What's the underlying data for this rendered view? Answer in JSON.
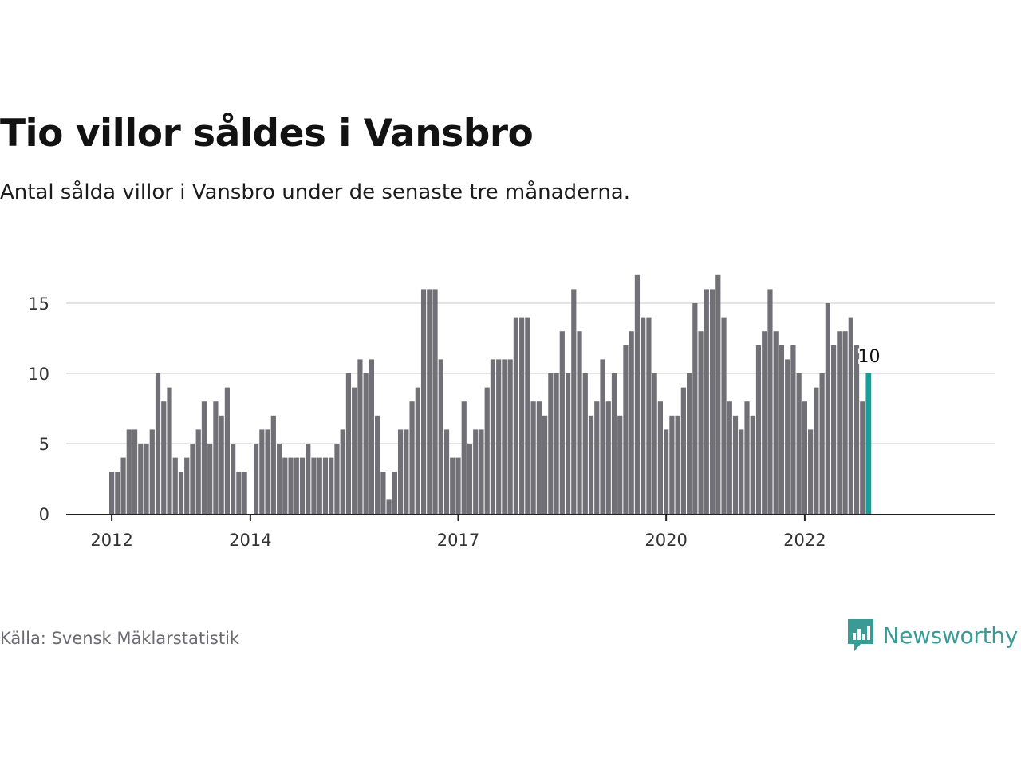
{
  "title": "Tio villor såldes i Vansbro",
  "subtitle": "Antal sålda villor i Vansbro under de senaste tre månaderna.",
  "source": "Källa: Svensk Mäklarstatistik",
  "brand": {
    "name": "Newsworthy",
    "icon": "newsworthy-logo-icon",
    "color": "#3a9a96"
  },
  "chart_data": {
    "type": "bar",
    "x_tick_labels": [
      "2012",
      "2014",
      "2017",
      "2020",
      "2022"
    ],
    "y_ticks": [
      0,
      5,
      10,
      15
    ],
    "ylim": [
      0,
      17.5
    ],
    "grid": true,
    "bar_color": "#717076",
    "highlight_color": "#14a098",
    "highlight_label": "10",
    "values": [
      3,
      3,
      4,
      6,
      6,
      5,
      5,
      6,
      10,
      8,
      9,
      4,
      3,
      4,
      5,
      6,
      8,
      5,
      8,
      7,
      9,
      5,
      3,
      3,
      0,
      5,
      6,
      6,
      7,
      5,
      4,
      4,
      4,
      4,
      5,
      4,
      4,
      4,
      4,
      5,
      6,
      10,
      9,
      11,
      10,
      11,
      7,
      3,
      1,
      3,
      6,
      6,
      8,
      9,
      16,
      16,
      16,
      11,
      6,
      4,
      4,
      8,
      5,
      6,
      6,
      9,
      11,
      11,
      11,
      11,
      14,
      14,
      14,
      8,
      8,
      7,
      10,
      10,
      13,
      10,
      16,
      13,
      10,
      7,
      8,
      11,
      8,
      10,
      7,
      12,
      13,
      17,
      14,
      14,
      10,
      8,
      6,
      7,
      7,
      9,
      10,
      15,
      13,
      16,
      16,
      17,
      14,
      8,
      7,
      6,
      8,
      7,
      12,
      13,
      16,
      13,
      12,
      11,
      12,
      10,
      8,
      6,
      9,
      10,
      15,
      12,
      13,
      13,
      14,
      12,
      8,
      10
    ]
  }
}
